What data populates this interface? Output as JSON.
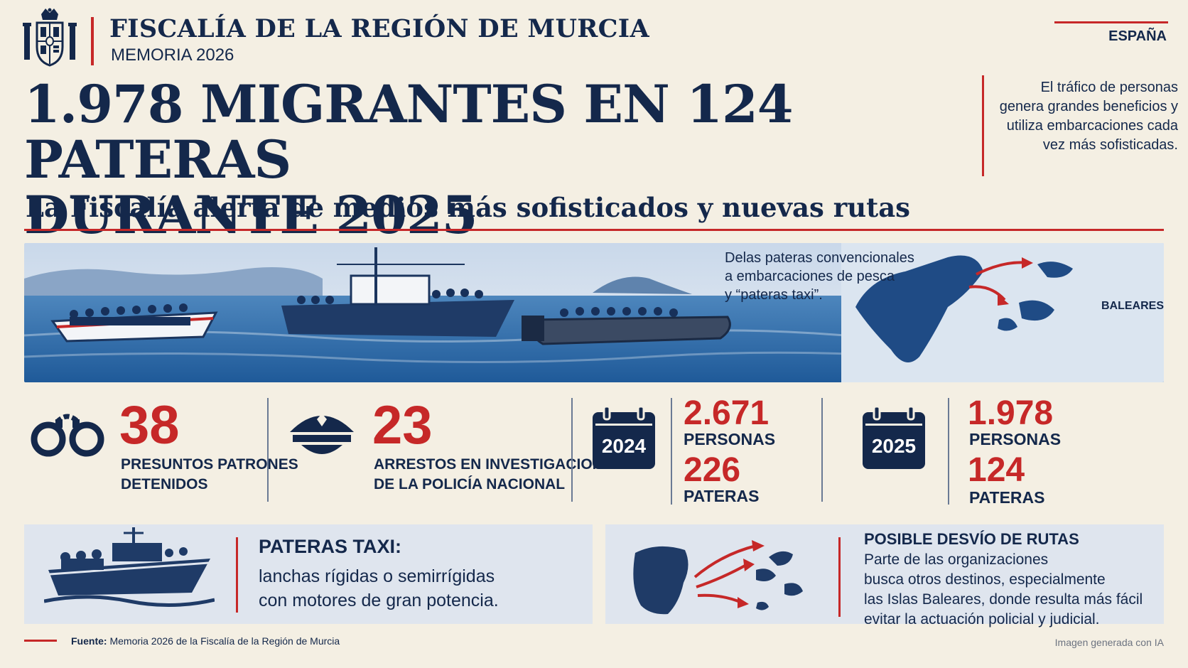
{
  "header": {
    "organization": "FISCALÍA DE LA REGIÓN DE MURCIA",
    "report": "MEMORIA 2026",
    "country": "ESPAÑA"
  },
  "headline": {
    "title_line1": "1.978 MIGRANTES EN 124 PATERAS",
    "title_line2": "DURANTE 2025",
    "subtitle": "La Fiscalía alerta de medios más sofisticados y nuevas rutas",
    "side_note": "El tráfico de personas genera grandes beneficios y utiliza embarcaciones cada vez más sofisticadas."
  },
  "banner": {
    "caption_line1": "Delas pateras convencionales",
    "caption_line2": "a embarcaciones de pesca",
    "caption_line3": "y “pateras taxi”.",
    "map_label": "BALEARES"
  },
  "stats": {
    "detained": {
      "value": "38",
      "label_line1": "PRESUNTOS PATRONES",
      "label_line2": "DETENIDOS"
    },
    "arrests": {
      "value": "23",
      "label_line1": "ARRESTOS EN INVESTIGACIONES",
      "label_line2": "DE LA POLICÍA NACIONAL"
    },
    "y2024": {
      "year": "2024",
      "persons": "2.671",
      "persons_label": "PERSONAS",
      "boats": "226",
      "boats_label": "PATERAS"
    },
    "y2025": {
      "year": "2025",
      "persons": "1.978",
      "persons_label": "PERSONAS",
      "boats": "124",
      "boats_label": "PATERAS"
    }
  },
  "panels": {
    "taxi": {
      "title": "PATERAS TAXI:",
      "line1": "lanchas rígidas o semirrígidas",
      "line2": "con motores de gran potencia."
    },
    "routes": {
      "title": "POSIBLE DESVÍO DE RUTAS",
      "line1": "Parte de las organizaciones",
      "line2": "busca otros destinos, especialmente",
      "line3": "las Islas Baleares, donde resulta más fácil",
      "line4": "evitar la actuación policial y judicial."
    }
  },
  "footer": {
    "source_label": "Fuente:",
    "source_text": "Memoria 2026 de la Fiscalía de la Región de Murcia",
    "ai_note": "Imagen generada con IA"
  },
  "colors": {
    "navy": "#14284b",
    "red": "#c62828",
    "background": "#f4efe3",
    "panel": "#dfe5ee",
    "sea": "#2f6aa8"
  }
}
